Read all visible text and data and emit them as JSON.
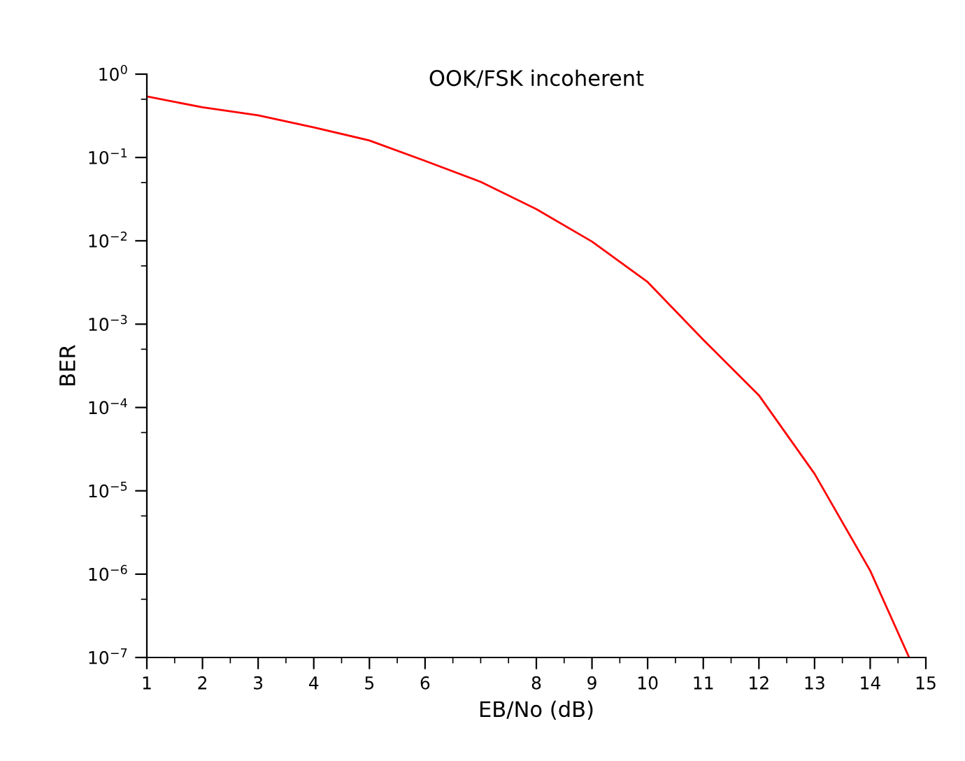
{
  "chart_data": {
    "type": "line",
    "title": "OOK/FSK incoherent",
    "xlabel": "EB/No (dB)",
    "ylabel": "BER",
    "x": [
      1,
      2,
      3,
      4,
      5,
      6,
      7,
      8,
      9,
      10,
      11,
      12,
      13,
      14,
      14.7
    ],
    "series": [
      {
        "color": "#ff0000",
        "values": [
          0.54,
          0.4,
          0.32,
          0.23,
          0.16,
          0.091,
          0.051,
          0.024,
          0.0098,
          0.0032,
          0.00065,
          0.00014,
          1.6e-05,
          1.1e-06,
          1e-07
        ]
      }
    ],
    "log": "y",
    "grid": false,
    "legend": false,
    "marker": "none",
    "line_style": "solid",
    "xlim": [
      1,
      15
    ],
    "xticks": [
      1,
      {
        "value": 1.5,
        "label": null
      },
      2,
      {
        "value": 2.5,
        "label": null
      },
      3,
      {
        "value": 3.5,
        "label": null
      },
      4,
      {
        "value": 4.5,
        "label": null
      },
      5,
      {
        "value": 5.5,
        "label": null
      },
      6,
      {
        "value": 6.5,
        "label": null
      },
      {
        "value": 7,
        "label": null
      },
      {
        "value": 7.5,
        "label": null
      },
      8,
      {
        "value": 8.5,
        "label": null
      },
      9,
      {
        "value": 9.5,
        "label": null
      },
      10,
      {
        "value": 10.5,
        "label": null
      },
      11,
      {
        "value": 11.5,
        "label": null
      },
      12,
      {
        "value": 12.5,
        "label": null
      },
      13,
      {
        "value": 13.5,
        "label": null
      },
      14,
      {
        "value": 14.5,
        "label": null
      },
      15
    ],
    "ylim": [
      1e-07,
      1
    ],
    "yticks": [
      {
        "value": 1e-07,
        "label": "10$^{−7}$"
      },
      {
        "value": 5e-07,
        "label": null
      },
      {
        "value": 1e-06,
        "label": "10$^{−6}$"
      },
      {
        "value": 5e-06,
        "label": null
      },
      {
        "value": 1e-05,
        "label": "10$^{−5}$"
      },
      {
        "value": 5e-05,
        "label": null
      },
      {
        "value": 0.0001,
        "label": "10$^{−4}$"
      },
      {
        "value": 0.0005,
        "label": null
      },
      {
        "value": 0.001,
        "label": "10$^{−3}$"
      },
      {
        "value": 0.005,
        "label": null
      },
      {
        "value": 0.01,
        "label": "10$^{−2}$"
      },
      {
        "value": 0.05,
        "label": null
      },
      {
        "value": 0.1,
        "label": "10$^{−1}$"
      },
      {
        "value": 0.5,
        "label": null
      },
      {
        "value": 1,
        "label": "10$^{0}$"
      }
    ]
  }
}
